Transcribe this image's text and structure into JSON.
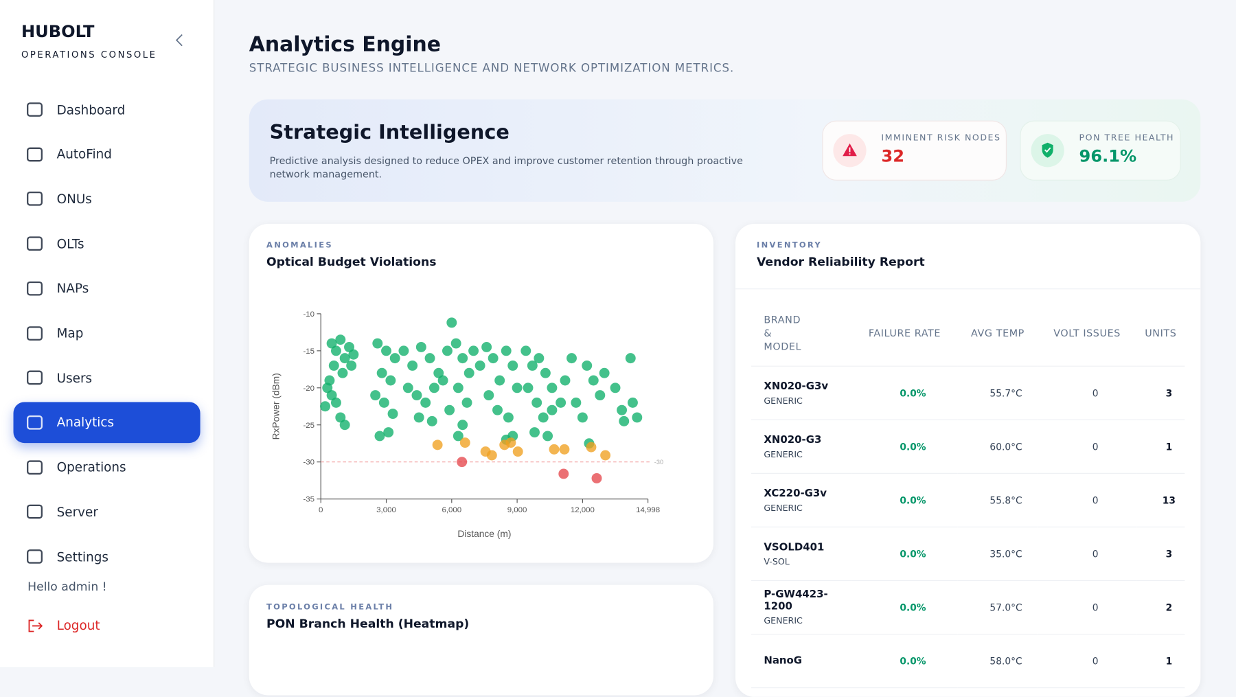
{
  "sidebar": {
    "brand": "HUBOLT",
    "subtitle": "OPERATIONS CONSOLE",
    "nav": [
      "Dashboard",
      "AutoFind",
      "ONUs",
      "OLTs",
      "NAPs",
      "Map",
      "Users",
      "Analytics",
      "Operations",
      "Server",
      "Settings"
    ],
    "active": "Analytics",
    "greeting": "Hello admin !",
    "logout": "Logout"
  },
  "header": {
    "title": "Analytics Engine",
    "subtitle": "STRATEGIC BUSINESS INTELLIGENCE AND NETWORK OPTIMIZATION METRICS."
  },
  "banner": {
    "title": "Strategic Intelligence",
    "text": "Predictive analysis designed to reduce OPEX and improve customer retention through proactive network management.",
    "stats": [
      {
        "label": "IMMINENT RISK NODES",
        "value": "32"
      },
      {
        "label": "PON TREE HEALTH",
        "value": "96.1%"
      }
    ]
  },
  "scatter_card": {
    "kicker": "ANOMALIES",
    "title": "Optical Budget Violations",
    "chart_data": {
      "type": "scatter",
      "x_label": "Distance (m)",
      "y_label": "RxPower (dBm)",
      "xlim": [
        0,
        14998
      ],
      "xticks": [
        0,
        {
          "value": 3000,
          "label": "3,000"
        },
        {
          "value": 6000,
          "label": "6,000"
        },
        {
          "value": 9000,
          "label": "9,000"
        },
        {
          "value": 12000,
          "label": "12,000"
        },
        {
          "value": 14998,
          "label": "14,998"
        }
      ],
      "ylim": [
        -35,
        -10
      ],
      "yticks": [
        -10,
        -15,
        -20,
        -25,
        -30,
        -35
      ],
      "threshold": -30,
      "series": [
        {
          "color": "#10b06a",
          "x": [
            500,
            700,
            900,
            1100,
            1300,
            1500,
            600,
            1000,
            1400,
            300,
            500,
            200,
            700,
            900,
            1100,
            400,
            2600,
            3000,
            3400,
            2800,
            3200,
            2500,
            2900,
            3300,
            3100,
            2700,
            3800,
            4200,
            4600,
            5000,
            5400,
            4000,
            4400,
            4800,
            5200,
            5600,
            4500,
            5100,
            5800,
            6000,
            6200,
            6500,
            6800,
            7000,
            6300,
            6700,
            5900,
            6500,
            6300,
            7300,
            7600,
            7900,
            8200,
            8500,
            8800,
            7700,
            8100,
            8600,
            9000,
            8800,
            8500,
            9400,
            9700,
            10000,
            9500,
            9900,
            10300,
            10600,
            11000,
            10200,
            10600,
            9800,
            10400,
            11200,
            11500,
            11700,
            12200,
            12500,
            12800,
            13000,
            12000,
            13500,
            13800,
            14200,
            14300,
            14500,
            12300,
            13900
          ],
          "values": [
            -14,
            -15,
            -13.5,
            -16,
            -14.5,
            -15.5,
            -17,
            -18,
            -17,
            -20,
            -21,
            -22.5,
            -22,
            -24,
            -25,
            -19,
            -14,
            -15,
            -16,
            -18,
            -19,
            -21,
            -22,
            -23.5,
            -26,
            -26.5,
            -15,
            -17,
            -14.5,
            -16,
            -18,
            -20,
            -21,
            -22,
            -20,
            -19,
            -24,
            -24.5,
            -15,
            -11.2,
            -14,
            -16,
            -18,
            -15,
            -20,
            -22,
            -23,
            -25,
            -26.5,
            -17,
            -14.5,
            -16,
            -19,
            -15,
            -17,
            -21,
            -23,
            -24,
            -20,
            -26.5,
            -27,
            -15,
            -17,
            -16,
            -20,
            -22,
            -18,
            -20,
            -22,
            -24,
            -23,
            -26,
            -26.5,
            -19,
            -16,
            -22,
            -17,
            -19,
            -21,
            -18,
            -24,
            -20,
            -23,
            -16,
            -22,
            -24,
            -27.5,
            -24.5
          ]
        },
        {
          "color": "#f0a020",
          "x": [
            5349,
            6613,
            7553,
            7842,
            8421,
            8710,
            9035,
            10697,
            11167,
            12396,
            13046
          ],
          "values": [
            -27.7,
            -27.4,
            -28.6,
            -29.1,
            -27.7,
            -27.4,
            -28.6,
            -28.3,
            -28.3,
            -28.0,
            -29.1
          ]
        },
        {
          "color": "#e5484d",
          "x": [
            6469,
            11131,
            12649
          ],
          "values": [
            -30.0,
            -31.6,
            -32.2
          ]
        }
      ]
    }
  },
  "heatmap_card": {
    "kicker": "TOPOLOGICAL HEALTH",
    "title": "PON Branch Health (Heatmap)"
  },
  "vendor_card": {
    "kicker": "INVENTORY",
    "title": "Vendor Reliability Report",
    "table": {
      "headers": [
        "BRAND & MODEL",
        "FAILURE RATE",
        "AVG TEMP",
        "VOLT ISSUES",
        "UNITS"
      ],
      "rows": [
        {
          "model": "XN020-G3v",
          "brand": "GENERIC",
          "cells": [
            "0.0%",
            "55.7°C",
            "0",
            "3"
          ]
        },
        {
          "model": "XN020-G3",
          "brand": "GENERIC",
          "cells": [
            "0.0%",
            "60.0°C",
            "0",
            "1"
          ]
        },
        {
          "model": "XC220-G3v",
          "brand": "GENERIC",
          "cells": [
            "0.0%",
            "55.8°C",
            "0",
            "13"
          ]
        },
        {
          "model": "VSOLD401",
          "brand": "V-SOL",
          "cells": [
            "0.0%",
            "35.0°C",
            "0",
            "3"
          ]
        },
        {
          "model": "P-GW4423-1200",
          "brand": "GENERIC",
          "cells": [
            "0.0%",
            "57.0°C",
            "0",
            "2"
          ]
        },
        {
          "model": "NanoG",
          "brand": "",
          "cells": [
            "0.0%",
            "58.0°C",
            "0",
            "1"
          ]
        }
      ]
    }
  }
}
